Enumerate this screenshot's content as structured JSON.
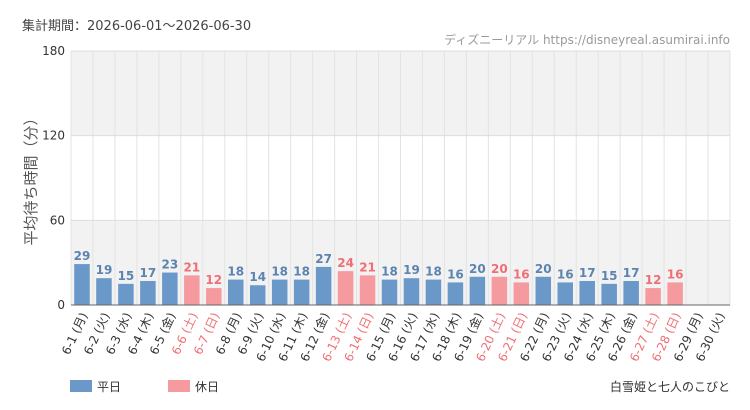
{
  "header": {
    "period_label": "集計期間：2026-06-01～2026-06-30",
    "source": "ディズニーリアル https://disneyreal.asumirai.info"
  },
  "legend": {
    "weekday": "平日",
    "holiday": "休日"
  },
  "attraction": "白雪姫と七人のこびと",
  "colors": {
    "weekday": "#6a98c8",
    "holiday": "#f59a9f",
    "weekday_text": "#5b84b1",
    "holiday_text": "#ee6f75",
    "axis_text": "#333333",
    "band": "#f2f2f2"
  },
  "chart_data": {
    "type": "bar",
    "ylabel": "平均待ち時間（分）",
    "ylim": [
      0,
      180
    ],
    "yticks": [
      0,
      60,
      120,
      180
    ],
    "shaded_bands": [
      [
        120,
        180
      ],
      [
        0,
        60
      ]
    ],
    "grid": true,
    "legend_position": "bottom-left",
    "categories": [
      "6-1 (月)",
      "6-2 (火)",
      "6-3 (水)",
      "6-4 (木)",
      "6-5 (金)",
      "6-6 (土)",
      "6-7 (日)",
      "6-8 (月)",
      "6-9 (火)",
      "6-10 (水)",
      "6-11 (木)",
      "6-12 (金)",
      "6-13 (土)",
      "6-14 (日)",
      "6-15 (月)",
      "6-16 (火)",
      "6-17 (水)",
      "6-18 (木)",
      "6-19 (金)",
      "6-20 (土)",
      "6-21 (日)",
      "6-22 (月)",
      "6-23 (火)",
      "6-24 (水)",
      "6-25 (木)",
      "6-26 (金)",
      "6-27 (土)",
      "6-28 (日)",
      "6-29 (月)",
      "6-30 (火)"
    ],
    "day_type": [
      "weekday",
      "weekday",
      "weekday",
      "weekday",
      "weekday",
      "holiday",
      "holiday",
      "weekday",
      "weekday",
      "weekday",
      "weekday",
      "weekday",
      "holiday",
      "holiday",
      "weekday",
      "weekday",
      "weekday",
      "weekday",
      "weekday",
      "holiday",
      "holiday",
      "weekday",
      "weekday",
      "weekday",
      "weekday",
      "weekday",
      "holiday",
      "holiday",
      "weekday",
      "weekday"
    ],
    "values": [
      29,
      19,
      15,
      17,
      23,
      21,
      12,
      18,
      14,
      18,
      18,
      27,
      24,
      21,
      18,
      19,
      18,
      16,
      20,
      20,
      16,
      20,
      16,
      17,
      15,
      17,
      12,
      16,
      null,
      null
    ]
  }
}
